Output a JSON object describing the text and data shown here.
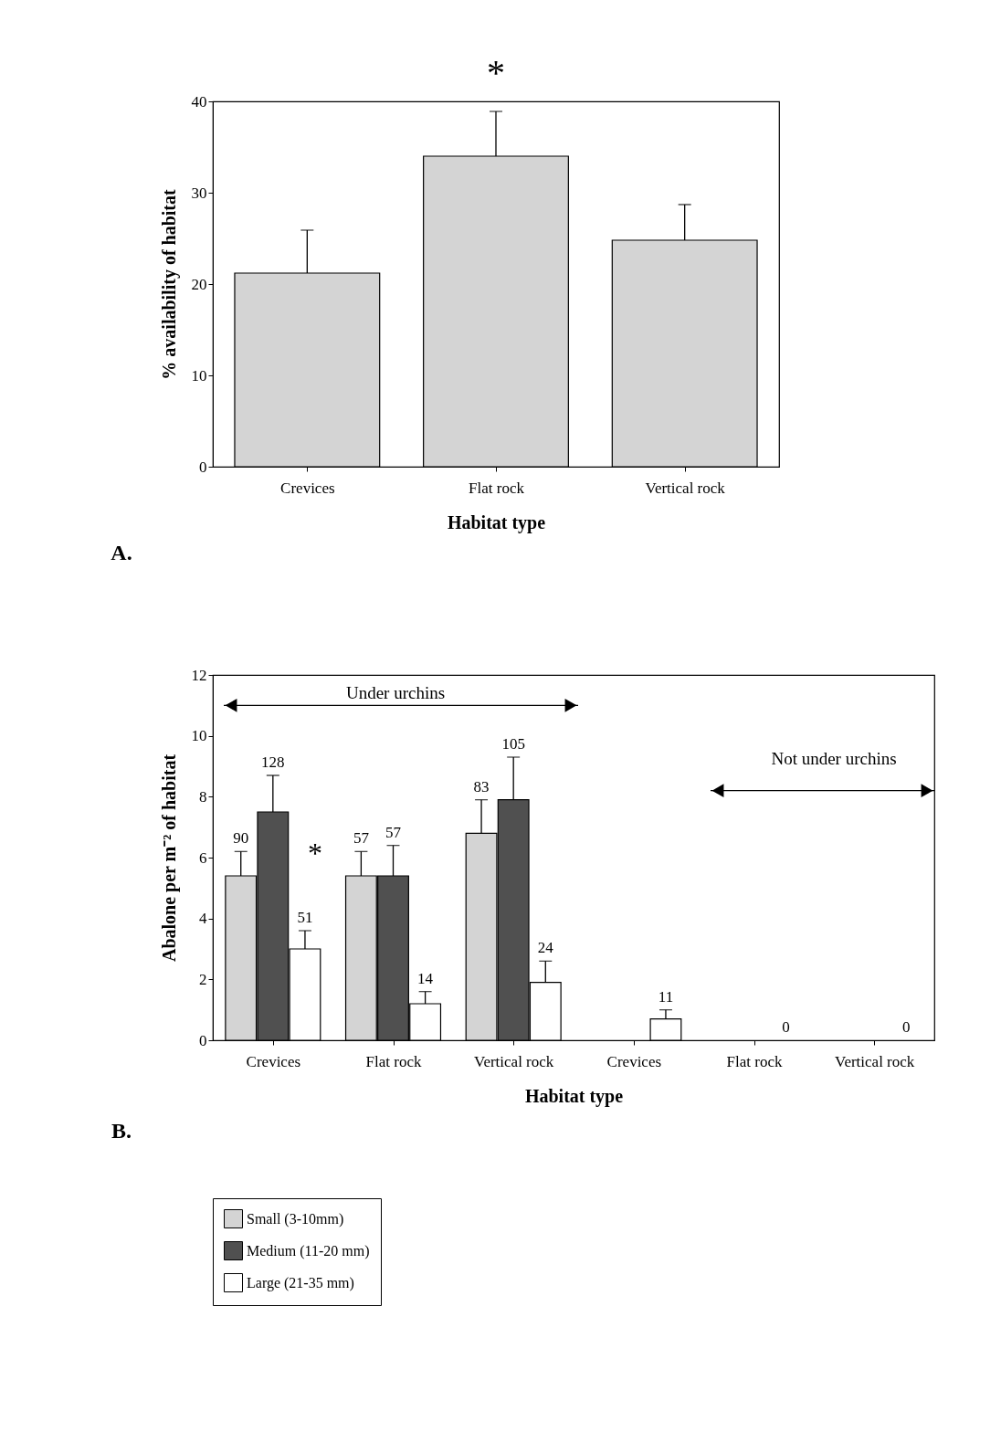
{
  "chart_data": [
    {
      "type": "bar",
      "xlabel": "Habitat type",
      "ylabel": "% availability of habitat",
      "categories": [
        "Crevices",
        "Flat rock",
        "Vertical rock"
      ],
      "values": [
        21.2,
        34,
        24.8
      ],
      "errors": [
        [
          21.2,
          25.9
        ],
        [
          34,
          38.9
        ],
        [
          24.8,
          28.7
        ]
      ],
      "color": "#d4d4d4",
      "ylim": [
        0,
        40
      ],
      "yticks": [
        0,
        10,
        20,
        30,
        40
      ],
      "grid": false,
      "annotations": [
        "*",
        "A."
      ]
    },
    {
      "type": "bar",
      "xlabel": "Habitat type",
      "ylabel": "Abalone per m⁻² of habitat",
      "categories": [
        "Crevices",
        "Flat rock",
        "Vertical rock",
        "Crevices",
        "Flat rock",
        "Vertical rock"
      ],
      "ylim": [
        0,
        12
      ],
      "yticks": [
        0,
        2,
        4,
        6,
        8,
        10,
        12
      ],
      "grid": false,
      "legend": "bottom",
      "series": [
        {
          "name": "Small (3-10mm)",
          "color": "#d4d4d4",
          "values": [
            5.4,
            5.4,
            6.8,
            null,
            null,
            null
          ],
          "errors": [
            [
              5.4,
              6.2
            ],
            [
              5.4,
              6.2
            ],
            [
              6.8,
              7.9
            ],
            null,
            null,
            null
          ]
        },
        {
          "name": "Medium (11-20 mm)",
          "color": "#505050",
          "values": [
            7.5,
            5.4,
            7.9,
            null,
            null,
            null
          ],
          "errors": [
            [
              7.5,
              8.7
            ],
            [
              5.4,
              6.4
            ],
            [
              7.9,
              9.3
            ],
            null,
            null,
            null
          ]
        },
        {
          "name": "Large (21-35 mm)",
          "color": "#ffffff",
          "values": [
            3.0,
            1.2,
            1.9,
            0.7,
            0,
            0
          ],
          "errors": [
            [
              3.0,
              3.6
            ],
            [
              1.2,
              1.6
            ],
            [
              1.9,
              2.6
            ],
            [
              0.7,
              1.0
            ],
            null,
            null
          ]
        }
      ],
      "annotations": [
        "Under urchins",
        "Not under urchins",
        "*",
        "B.",
        "90",
        "128",
        "51",
        "57",
        "57",
        "14",
        "83",
        "105",
        "24",
        "11",
        "0",
        "0"
      ]
    }
  ]
}
